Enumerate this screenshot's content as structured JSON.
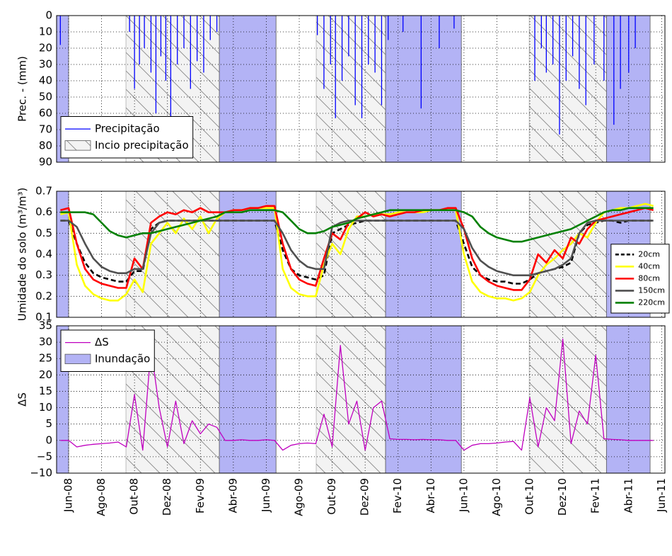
{
  "chart_data": [
    {
      "type": "bar",
      "ylabel": "Prec. - (mm)",
      "ylim": [
        0,
        90
      ],
      "y_inverted": true,
      "yticks": [
        0,
        10,
        20,
        30,
        40,
        50,
        60,
        70,
        80,
        90
      ],
      "grid": true,
      "legend": "lower left",
      "onset_periods": {
        "name": "Incio precipitação",
        "ranges": [
          [
            3.48,
            9.15
          ],
          [
            15.03,
            19.24
          ],
          [
            27.96,
            32.65
          ]
        ]
      },
      "x": [
        -0.5,
        3.7,
        4.0,
        4.3,
        4.6,
        5.0,
        5.3,
        5.6,
        5.9,
        6.2,
        6.6,
        7.0,
        7.4,
        7.8,
        8.2,
        8.6,
        9.0,
        15.1,
        15.5,
        15.9,
        16.2,
        16.6,
        17.0,
        17.4,
        17.8,
        18.2,
        18.6,
        19.0,
        19.4,
        20.3,
        21.4,
        22.5,
        23.4,
        28.3,
        28.7,
        29.0,
        29.4,
        29.8,
        30.2,
        30.6,
        31.0,
        31.4,
        31.9,
        32.5,
        33.1,
        33.5,
        34.0,
        34.4
      ],
      "series": [
        {
          "name": "Precipitação",
          "color": "#0000ff",
          "values": [
            18,
            10,
            45,
            30,
            20,
            35,
            60,
            25,
            40,
            70,
            30,
            20,
            45,
            28,
            35,
            15,
            10,
            12,
            45,
            30,
            63,
            40,
            25,
            55,
            63,
            30,
            35,
            55,
            15,
            10,
            57,
            20,
            8,
            40,
            20,
            35,
            30,
            73,
            40,
            25,
            45,
            55,
            30,
            40,
            67,
            45,
            35,
            20
          ]
        }
      ]
    },
    {
      "type": "line",
      "ylabel": "Umidade do solo (m³/m³)",
      "ylim": [
        0.1,
        0.7
      ],
      "yticks": [
        0.1,
        0.2,
        0.3,
        0.4,
        0.5,
        0.6,
        0.7
      ],
      "grid": true,
      "legend": "lower right",
      "x": [
        -0.5,
        0,
        0.5,
        1,
        1.5,
        2,
        2.5,
        3,
        3.5,
        4,
        4.5,
        5,
        5.5,
        6,
        6.5,
        7,
        7.5,
        8,
        8.5,
        9,
        9.5,
        10,
        10.5,
        11,
        11.5,
        12,
        12.5,
        13,
        13.5,
        14,
        14.5,
        15,
        15.5,
        16,
        16.5,
        17,
        17.5,
        18,
        18.5,
        19,
        19.5,
        20,
        20.5,
        21,
        21.5,
        22,
        22.5,
        23,
        23.5,
        24,
        24.5,
        25,
        25.5,
        26,
        26.5,
        27,
        27.5,
        28,
        28.5,
        29,
        29.5,
        30,
        30.5,
        31,
        31.5,
        32,
        32.5,
        33,
        33.5,
        34,
        34.5,
        35,
        35.5
      ],
      "series": [
        {
          "name": "20cm",
          "color": "#000000",
          "dashed": true,
          "values": [
            0.56,
            0.56,
            0.45,
            0.36,
            0.31,
            0.29,
            0.28,
            0.27,
            0.27,
            0.32,
            0.32,
            0.52,
            0.55,
            0.56,
            0.56,
            0.56,
            0.56,
            0.56,
            0.56,
            0.56,
            0.56,
            0.56,
            0.56,
            0.56,
            0.56,
            0.56,
            0.56,
            0.42,
            0.33,
            0.3,
            0.29,
            0.28,
            0.3,
            0.5,
            0.52,
            0.54,
            0.55,
            0.56,
            0.56,
            0.56,
            0.56,
            0.56,
            0.56,
            0.56,
            0.56,
            0.56,
            0.56,
            0.56,
            0.56,
            0.45,
            0.34,
            0.3,
            0.28,
            0.27,
            0.27,
            0.26,
            0.26,
            0.28,
            0.31,
            0.32,
            0.33,
            0.34,
            0.36,
            0.5,
            0.54,
            0.55,
            0.56,
            0.56,
            0.55,
            0.56,
            0.56,
            0.56,
            0.56
          ]
        },
        {
          "name": "40cm",
          "color": "#ffff00",
          "values": [
            0.59,
            0.6,
            0.35,
            0.25,
            0.21,
            0.19,
            0.18,
            0.18,
            0.21,
            0.28,
            0.22,
            0.45,
            0.5,
            0.55,
            0.5,
            0.57,
            0.52,
            0.58,
            0.5,
            0.57,
            0.6,
            0.61,
            0.61,
            0.62,
            0.62,
            0.62,
            0.62,
            0.33,
            0.24,
            0.21,
            0.2,
            0.2,
            0.35,
            0.45,
            0.4,
            0.52,
            0.58,
            0.58,
            0.59,
            0.59,
            0.59,
            0.6,
            0.6,
            0.6,
            0.6,
            0.61,
            0.61,
            0.61,
            0.61,
            0.4,
            0.27,
            0.22,
            0.2,
            0.19,
            0.19,
            0.18,
            0.19,
            0.22,
            0.3,
            0.35,
            0.38,
            0.42,
            0.45,
            0.5,
            0.48,
            0.55,
            0.6,
            0.61,
            0.62,
            0.62,
            0.63,
            0.64,
            0.63
          ]
        },
        {
          "name": "80cm",
          "color": "#ff0000",
          "values": [
            0.61,
            0.62,
            0.45,
            0.33,
            0.28,
            0.26,
            0.25,
            0.24,
            0.24,
            0.38,
            0.33,
            0.55,
            0.58,
            0.6,
            0.59,
            0.61,
            0.6,
            0.62,
            0.6,
            0.6,
            0.6,
            0.61,
            0.61,
            0.62,
            0.62,
            0.63,
            0.63,
            0.45,
            0.33,
            0.28,
            0.26,
            0.25,
            0.38,
            0.5,
            0.47,
            0.55,
            0.57,
            0.6,
            0.58,
            0.59,
            0.58,
            0.59,
            0.6,
            0.6,
            0.61,
            0.61,
            0.61,
            0.62,
            0.62,
            0.52,
            0.38,
            0.3,
            0.27,
            0.25,
            0.24,
            0.23,
            0.23,
            0.28,
            0.4,
            0.36,
            0.42,
            0.38,
            0.48,
            0.45,
            0.52,
            0.56,
            0.57,
            0.58,
            0.59,
            0.6,
            0.61,
            0.62,
            0.61
          ]
        },
        {
          "name": "150cm",
          "color": "#505050",
          "values": [
            0.56,
            0.56,
            0.53,
            0.45,
            0.38,
            0.34,
            0.32,
            0.31,
            0.31,
            0.33,
            0.33,
            0.5,
            0.55,
            0.56,
            0.56,
            0.56,
            0.56,
            0.56,
            0.56,
            0.56,
            0.56,
            0.56,
            0.56,
            0.56,
            0.56,
            0.56,
            0.56,
            0.5,
            0.42,
            0.37,
            0.34,
            0.33,
            0.33,
            0.53,
            0.55,
            0.56,
            0.56,
            0.56,
            0.56,
            0.56,
            0.56,
            0.56,
            0.56,
            0.56,
            0.56,
            0.56,
            0.56,
            0.56,
            0.56,
            0.52,
            0.43,
            0.37,
            0.34,
            0.32,
            0.31,
            0.3,
            0.3,
            0.3,
            0.31,
            0.32,
            0.33,
            0.35,
            0.38,
            0.5,
            0.55,
            0.56,
            0.56,
            0.56,
            0.56,
            0.56,
            0.56,
            0.56,
            0.56
          ]
        },
        {
          "name": "220cm",
          "color": "#008000",
          "values": [
            0.6,
            0.6,
            0.6,
            0.6,
            0.59,
            0.55,
            0.51,
            0.49,
            0.48,
            0.49,
            0.5,
            0.5,
            0.51,
            0.52,
            0.53,
            0.54,
            0.55,
            0.56,
            0.57,
            0.58,
            0.6,
            0.6,
            0.6,
            0.61,
            0.61,
            0.61,
            0.61,
            0.6,
            0.56,
            0.52,
            0.5,
            0.5,
            0.51,
            0.53,
            0.54,
            0.55,
            0.57,
            0.58,
            0.59,
            0.6,
            0.61,
            0.61,
            0.61,
            0.61,
            0.61,
            0.61,
            0.61,
            0.61,
            0.61,
            0.6,
            0.58,
            0.53,
            0.5,
            0.48,
            0.47,
            0.46,
            0.46,
            0.47,
            0.48,
            0.49,
            0.5,
            0.51,
            0.52,
            0.54,
            0.56,
            0.58,
            0.6,
            0.61,
            0.61,
            0.62,
            0.62,
            0.62,
            0.62
          ]
        }
      ]
    },
    {
      "type": "line",
      "ylabel": "ΔS",
      "ylim": [
        -10,
        35
      ],
      "yticks": [
        {
          "value": -10,
          "label": "−10"
        },
        {
          "value": -5,
          "label": "−5"
        },
        0,
        5,
        10,
        15,
        20,
        25,
        30,
        35
      ],
      "grid": true,
      "legend": "upper left",
      "xlim": [
        -0.73,
        36.2
      ],
      "xticks": [
        {
          "value": 0,
          "label": "Jun-08"
        },
        {
          "value": 2,
          "label": "Ago-08"
        },
        {
          "value": 4,
          "label": "Out-08"
        },
        {
          "value": 6,
          "label": "Dez-08"
        },
        {
          "value": 8,
          "label": "Fev-09"
        },
        {
          "value": 10,
          "label": "Abr-09"
        },
        {
          "value": 12,
          "label": "Jun-09"
        },
        {
          "value": 14,
          "label": "Ago-09"
        },
        {
          "value": 16,
          "label": "Out-09"
        },
        {
          "value": 18,
          "label": "Dez-09"
        },
        {
          "value": 20,
          "label": "Fev-10"
        },
        {
          "value": 22,
          "label": "Abr-10"
        },
        {
          "value": 24,
          "label": "Jun-10"
        },
        {
          "value": 26,
          "label": "Ago-10"
        },
        {
          "value": 28,
          "label": "Out-10"
        },
        {
          "value": 30,
          "label": "Dez-10"
        },
        {
          "value": 32,
          "label": "Fev-11"
        },
        {
          "value": 34,
          "label": "Abr-11"
        },
        {
          "value": 36,
          "label": "Jun-11"
        }
      ],
      "flood_periods": {
        "name": "Inundação",
        "color": "#b3b3f5",
        "ranges": [
          [
            -0.73,
            0
          ],
          [
            9.15,
            12.59
          ],
          [
            19.24,
            23.84
          ],
          [
            32.65,
            35.3
          ]
        ]
      },
      "x": [
        -0.5,
        0,
        0.5,
        1,
        1.5,
        2,
        2.5,
        3,
        3.5,
        4,
        4.5,
        5,
        5.5,
        6,
        6.5,
        7,
        7.5,
        8,
        8.5,
        9,
        9.5,
        10,
        10.5,
        11,
        11.5,
        12,
        12.5,
        13,
        13.5,
        14,
        14.5,
        15,
        15.5,
        16,
        16.5,
        17,
        17.5,
        18,
        18.5,
        19,
        19.5,
        20,
        20.5,
        21,
        21.5,
        22,
        22.5,
        23,
        23.5,
        24,
        24.5,
        25,
        25.5,
        26,
        26.5,
        27,
        27.5,
        28,
        28.5,
        29,
        29.5,
        30,
        30.5,
        31,
        31.5,
        32,
        32.5,
        33,
        33.5,
        34,
        34.5,
        35,
        35.5
      ],
      "series": [
        {
          "name": "ΔS",
          "color": "#bf00bf",
          "values": [
            0,
            0,
            -2,
            -1.5,
            -1.2,
            -1,
            -0.8,
            -0.5,
            -2,
            14,
            -3,
            28,
            10,
            -2,
            12,
            -1,
            6,
            2,
            5,
            4,
            0,
            0,
            0.2,
            0,
            0,
            0.2,
            0,
            -3,
            -1.5,
            -1,
            -0.8,
            -1,
            8,
            -2,
            29,
            5,
            12,
            -3,
            10,
            12,
            0.5,
            0.3,
            0.3,
            0.2,
            0.3,
            0.2,
            0.2,
            0,
            0,
            -3,
            -1.5,
            -1,
            -1,
            -0.8,
            -0.5,
            -0.3,
            -3,
            13,
            -2,
            10,
            6,
            31,
            -1,
            9,
            5,
            26,
            0.5,
            0.3,
            0.2,
            0,
            0,
            0,
            0
          ]
        }
      ]
    }
  ]
}
